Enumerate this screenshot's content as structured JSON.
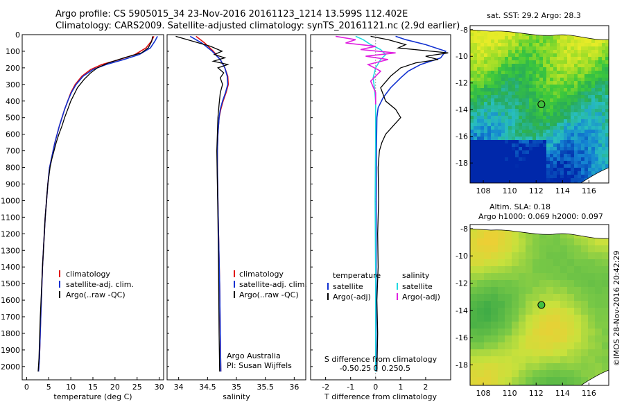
{
  "header": {
    "line1": "Argo profile: CS 5905015_34 23-Nov-2016 20161123_1214 13.599S 112.402E",
    "line2": "Climatology: CARS2009. Satellite-adjusted climatology: synTS_20161121.nc (2.9d earlier)"
  },
  "colors": {
    "climatology": "#e01010",
    "satellite": "#1030d0",
    "argo": "#000000",
    "salinity_satellite": "#20d8e0",
    "salinity_argo": "#e020e0"
  },
  "chart_data": [
    {
      "type": "line",
      "name": "temperature-profile",
      "xlabel": "temperature (deg C)",
      "xlim": [
        -1,
        31
      ],
      "xticks": [
        0,
        5,
        10,
        15,
        20,
        25,
        30
      ],
      "ylim": [
        0,
        2080
      ],
      "yticks": [
        0,
        100,
        200,
        300,
        400,
        500,
        600,
        700,
        800,
        900,
        1000,
        1100,
        1200,
        1300,
        1400,
        1500,
        1600,
        1700,
        1800,
        1900,
        2000
      ],
      "legend": [
        "climatology",
        "satellite-adj. clim.",
        "Argo(..raw -QC)"
      ],
      "series": [
        {
          "name": "climatology",
          "color_key": "climatology",
          "x": [
            28.8,
            28.2,
            27.0,
            24.5,
            21.0,
            17.0,
            14.5,
            12.5,
            11.0,
            10.0,
            9.3,
            8.6,
            8.0,
            7.4,
            6.9,
            6.4,
            6.0,
            5.6,
            5.2,
            4.8,
            4.2,
            3.6,
            3.2,
            2.9,
            2.7
          ],
          "y": [
            10,
            40,
            80,
            120,
            150,
            180,
            210,
            250,
            300,
            350,
            400,
            450,
            500,
            550,
            600,
            650,
            700,
            750,
            800,
            900,
            1100,
            1400,
            1700,
            1950,
            2030
          ]
        },
        {
          "name": "satellite-adj. clim.",
          "color_key": "satellite",
          "x": [
            29.6,
            29.0,
            28.0,
            25.5,
            22.0,
            18.0,
            15.0,
            12.8,
            11.2,
            10.1,
            9.3,
            8.6,
            8.0,
            7.4,
            6.9,
            6.4,
            6.0,
            5.6,
            5.2,
            4.8,
            4.2,
            3.6,
            3.2,
            2.9,
            2.7
          ],
          "y": [
            10,
            40,
            80,
            120,
            150,
            180,
            210,
            250,
            300,
            350,
            400,
            450,
            500,
            550,
            600,
            650,
            700,
            750,
            800,
            900,
            1100,
            1400,
            1700,
            1950,
            2030
          ]
        },
        {
          "name": "Argo(..raw -QC)",
          "color_key": "argo",
          "x": [
            28.5,
            28.3,
            27.5,
            26.0,
            22.0,
            18.5,
            16.0,
            14.5,
            13.0,
            11.5,
            10.0,
            9.3,
            8.6,
            8.0,
            7.3,
            6.7,
            6.2,
            5.7,
            5.3,
            4.8,
            4.2,
            3.6,
            3.1,
            2.8,
            2.6
          ],
          "y": [
            10,
            40,
            80,
            110,
            140,
            170,
            200,
            230,
            270,
            320,
            400,
            450,
            500,
            550,
            600,
            650,
            700,
            750,
            800,
            900,
            1100,
            1400,
            1700,
            1950,
            2030
          ]
        }
      ]
    },
    {
      "type": "line",
      "name": "salinity-profile",
      "xlabel": "salinity",
      "xlim": [
        33.8,
        36.2
      ],
      "xticks": [
        34,
        34.5,
        35,
        35.5,
        36
      ],
      "ylim": [
        0,
        2080
      ],
      "legend": [
        "climatology",
        "satellite-adj. clim.",
        "Argo(..raw -QC)"
      ],
      "annotation": [
        "Argo Australia",
        "PI: Susan Wijffels"
      ],
      "series": [
        {
          "name": "climatology",
          "color_key": "climatology",
          "x": [
            34.3,
            34.45,
            34.6,
            34.72,
            34.8,
            34.85,
            34.86,
            34.82,
            34.77,
            34.73,
            34.7,
            34.68,
            34.67,
            34.67,
            34.68,
            34.69,
            34.71,
            34.72,
            34.73
          ],
          "y": [
            10,
            50,
            100,
            150,
            200,
            250,
            300,
            350,
            400,
            450,
            500,
            600,
            700,
            800,
            1000,
            1200,
            1500,
            1800,
            2030
          ]
        },
        {
          "name": "satellite-adj. clim.",
          "color_key": "satellite",
          "x": [
            34.2,
            34.4,
            34.58,
            34.72,
            34.8,
            34.84,
            34.85,
            34.81,
            34.76,
            34.72,
            34.7,
            34.68,
            34.67,
            34.67,
            34.68,
            34.69,
            34.71,
            34.72,
            34.73
          ],
          "y": [
            10,
            50,
            100,
            150,
            200,
            250,
            300,
            350,
            400,
            450,
            500,
            600,
            700,
            800,
            1000,
            1200,
            1500,
            1800,
            2030
          ]
        },
        {
          "name": "Argo(..raw -QC)",
          "color_key": "argo",
          "x": [
            33.95,
            34.1,
            34.35,
            34.55,
            34.75,
            34.62,
            34.8,
            34.6,
            34.85,
            34.68,
            34.78,
            34.72,
            34.76,
            34.72,
            34.7,
            34.68,
            34.67,
            34.66,
            34.67,
            34.68,
            34.69,
            34.7,
            34.71
          ],
          "y": [
            10,
            25,
            50,
            70,
            100,
            120,
            140,
            160,
            180,
            200,
            230,
            260,
            300,
            350,
            420,
            500,
            600,
            700,
            900,
            1100,
            1400,
            1800,
            2030
          ]
        }
      ]
    },
    {
      "type": "line",
      "name": "difference-profile",
      "xlabel": "T difference from climatology",
      "xlabel_top": "S difference from climatology",
      "xlim": [
        -2.6,
        3.0
      ],
      "xticks": [
        -2,
        -1,
        0,
        1,
        2
      ],
      "xticks_top": [
        -0.5,
        -0.25,
        0,
        0.25,
        0.5
      ],
      "ylim": [
        0,
        2080
      ],
      "legend_temperature": [
        "temperature",
        "satellite",
        "Argo(-adj)"
      ],
      "legend_salinity": [
        "salinity",
        "satellite",
        "Argo(-adj)"
      ],
      "series": [
        {
          "name": "satellite",
          "group": "temperature",
          "color_key": "satellite",
          "x": [
            0.8,
            1.2,
            2.0,
            2.8,
            2.6,
            1.8,
            1.3,
            1.0,
            0.6,
            0.3,
            0.1,
            0.05,
            0.03,
            0.02,
            0.02,
            0.02
          ],
          "y": [
            10,
            30,
            60,
            100,
            140,
            180,
            220,
            260,
            320,
            380,
            440,
            500,
            700,
            1000,
            1500,
            2030
          ]
        },
        {
          "name": "Argo(-adj)",
          "group": "temperature",
          "color_key": "argo",
          "x": [
            -0.2,
            0.5,
            1.2,
            0.9,
            2.9,
            2.0,
            2.5,
            1.6,
            1.0,
            0.6,
            0.2,
            0.4,
            0.8,
            1.0,
            0.7,
            0.4,
            0.25,
            0.15,
            0.1,
            0.12,
            0.08,
            0.1,
            0.05,
            0.08,
            0.05
          ],
          "y": [
            10,
            30,
            60,
            80,
            110,
            130,
            150,
            170,
            200,
            250,
            320,
            400,
            450,
            500,
            550,
            600,
            650,
            700,
            800,
            1000,
            1200,
            1400,
            1600,
            1800,
            2030
          ]
        },
        {
          "name": "satellite",
          "group": "salinity",
          "color_key": "salinity_satellite",
          "x": [
            -0.8,
            -0.5,
            -0.2,
            0.2,
            0.4,
            0.2,
            0.0,
            -0.1,
            -0.05,
            0.0,
            0.0,
            -0.02,
            0.0,
            0.0
          ],
          "y": [
            10,
            30,
            60,
            90,
            120,
            150,
            200,
            260,
            320,
            400,
            600,
            1000,
            1500,
            2030
          ]
        },
        {
          "name": "Argo(-adj)",
          "group": "salinity",
          "color_key": "salinity_argo",
          "x": [
            -1.6,
            -0.8,
            -1.2,
            0.0,
            -0.6,
            0.8,
            -0.4,
            0.5,
            -0.3,
            0.2,
            -0.2,
            0.0,
            0.0
          ],
          "y": [
            10,
            30,
            50,
            70,
            90,
            110,
            130,
            150,
            180,
            220,
            280,
            350,
            420
          ]
        }
      ]
    },
    {
      "type": "heatmap",
      "name": "sst-map",
      "title": "sat. SST: 29.2 Argo: 28.3",
      "xlim": [
        107,
        117.5
      ],
      "ylim": [
        -19.5,
        -7.7
      ],
      "xticks": [
        108,
        110,
        112,
        114,
        116
      ],
      "yticks": [
        -8,
        -10,
        -12,
        -14,
        -16,
        -18
      ],
      "float_position": {
        "lon": 112.4,
        "lat": -13.6
      }
    },
    {
      "type": "heatmap",
      "name": "sla-map",
      "title_lines": [
        "Altim. SLA: 0.18",
        "Argo h1000: 0.069 h2000: 0.097"
      ],
      "xlim": [
        107,
        117.5
      ],
      "ylim": [
        -19.5,
        -7.7
      ],
      "xticks": [
        108,
        110,
        112,
        114,
        116
      ],
      "yticks": [
        -8,
        -10,
        -12,
        -14,
        -16,
        -18
      ],
      "float_position": {
        "lon": 112.4,
        "lat": -13.6
      }
    }
  ],
  "footer": {
    "stamp": "©IMOS 28-Nov-2016 20:42:29"
  }
}
